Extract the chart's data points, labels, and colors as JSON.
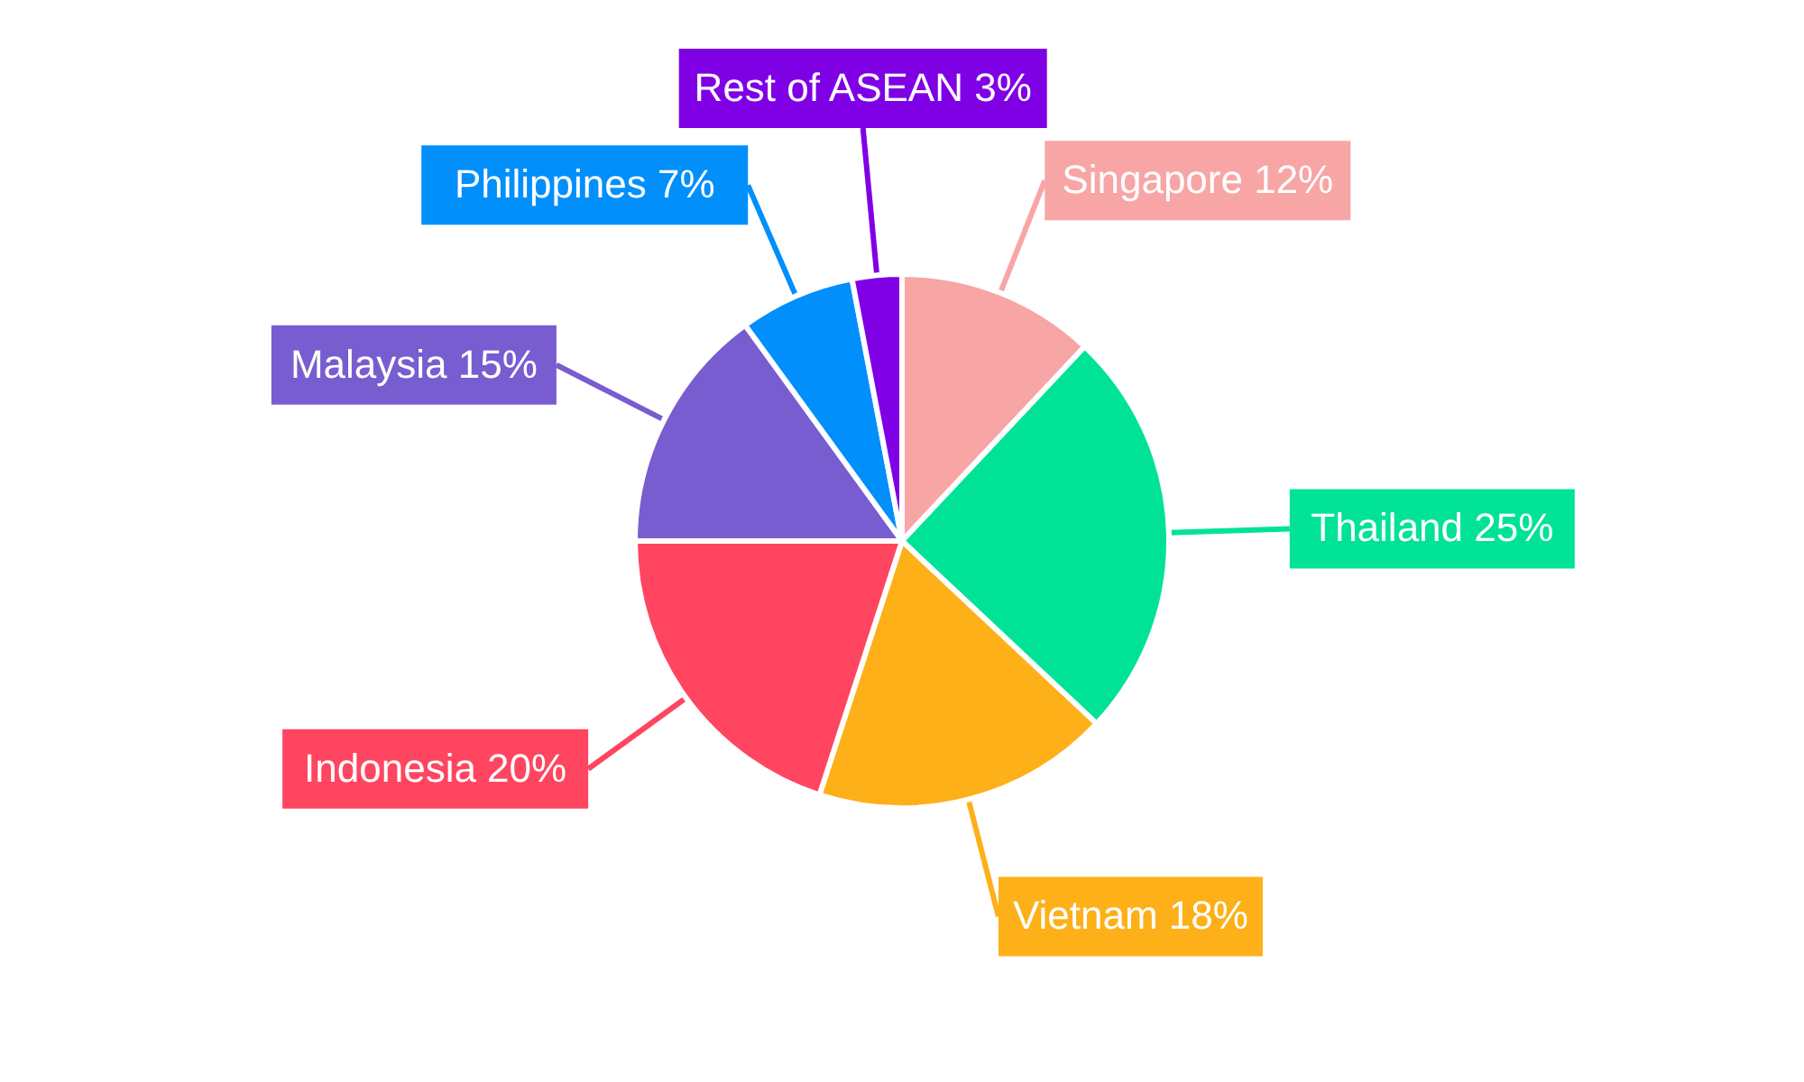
{
  "chart_data": {
    "type": "pie",
    "categories": [
      "Singapore",
      "Thailand",
      "Vietnam",
      "Indonesia",
      "Malaysia",
      "Philippines",
      "Rest of ASEAN"
    ],
    "values": [
      12,
      25,
      18,
      20,
      15,
      7,
      3
    ],
    "value_labels": [
      "12%",
      "25%",
      "18%",
      "20%",
      "15%",
      "7%",
      "3%"
    ],
    "colors": [
      "#f8a5a5",
      "#00e396",
      "#feb019",
      "#ff4560",
      "#775dd0",
      "#008ffb",
      "#8000e6"
    ]
  }
}
